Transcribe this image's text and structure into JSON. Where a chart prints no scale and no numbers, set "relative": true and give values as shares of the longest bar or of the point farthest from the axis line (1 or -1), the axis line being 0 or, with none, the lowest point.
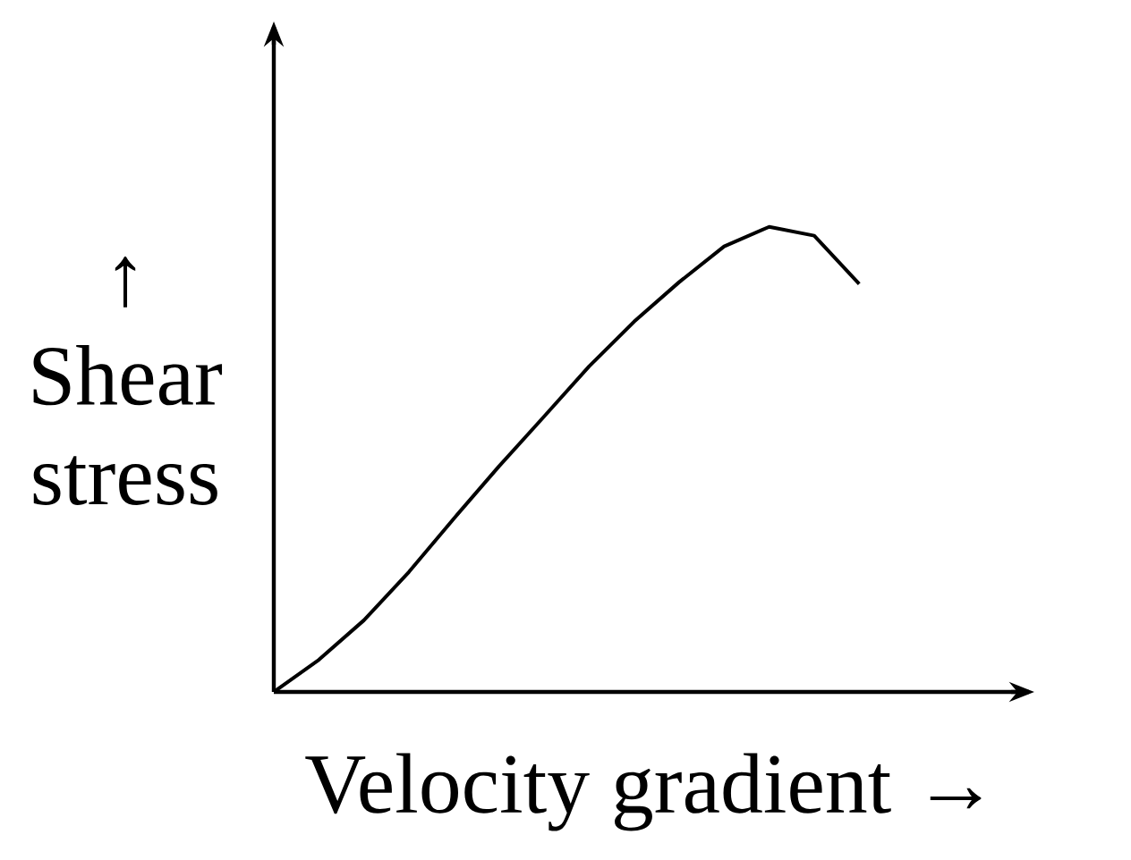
{
  "chart_data": {
    "type": "line",
    "relative": true,
    "xlabel": "Velocity gradient →",
    "ylabel": "↑ Shear stress",
    "color": "#000000",
    "line_style": "solid",
    "categories": [
      null,
      null,
      null,
      null,
      null,
      null,
      null,
      null,
      null,
      null,
      null,
      null,
      null,
      null
    ],
    "values": [
      0,
      0.069,
      0.154,
      0.258,
      0.373,
      0.485,
      0.592,
      0.7,
      0.796,
      0.881,
      0.958,
      1,
      0.981,
      0.877
    ]
  }
}
